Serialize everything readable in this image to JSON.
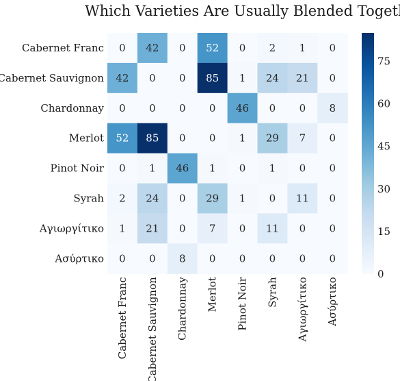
{
  "chart_data": {
    "type": "heatmap",
    "title": "Which Varieties Are Usually Blended Together ?",
    "xlabel": "",
    "ylabel": "",
    "rows": [
      "Cabernet Franc",
      "Cabernet Sauvignon",
      "Chardonnay",
      "Merlot",
      "Pinot Noir",
      "Syrah",
      "Αγιωργίτικο",
      "Ασύρτικο"
    ],
    "columns": [
      "Cabernet Franc",
      "Cabernet Sauvignon",
      "Chardonnay",
      "Merlot",
      "Pinot Noir",
      "Syrah",
      "Αγιωργίτικο",
      "Ασύρτικο"
    ],
    "values": [
      [
        0,
        42,
        0,
        52,
        0,
        2,
        1,
        0
      ],
      [
        42,
        0,
        0,
        85,
        1,
        24,
        21,
        0
      ],
      [
        0,
        0,
        0,
        0,
        46,
        0,
        0,
        8
      ],
      [
        52,
        85,
        0,
        0,
        1,
        29,
        7,
        0
      ],
      [
        0,
        1,
        46,
        1,
        0,
        1,
        0,
        0
      ],
      [
        2,
        24,
        0,
        29,
        1,
        0,
        11,
        0
      ],
      [
        1,
        21,
        0,
        7,
        0,
        11,
        0,
        0
      ],
      [
        0,
        0,
        8,
        0,
        0,
        0,
        0,
        0
      ]
    ],
    "colormap": "Blues",
    "vmin": 0,
    "vmax": 85,
    "colorbar_ticks": [
      0,
      15,
      30,
      45,
      60,
      75
    ],
    "annotations": true,
    "grid": false,
    "legend": "colorbar-right"
  }
}
